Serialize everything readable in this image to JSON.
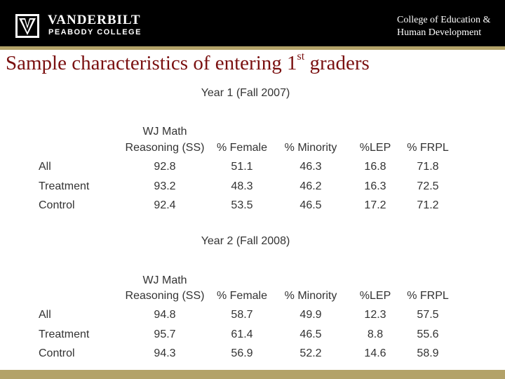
{
  "header": {
    "brand_name": "VANDERBILT",
    "brand_sub": "PEABODY COLLEGE",
    "college_line1": "College of Education &",
    "college_line2": "Human Development"
  },
  "slide": {
    "title_main": "Sample characteristics of entering 1",
    "title_sup": "st",
    "title_end": " graders"
  },
  "tables": [
    {
      "title": "Year 1 (Fall 2007)",
      "headers": [
        {
          "line1": "WJ Math",
          "line2": "Reasoning (SS)"
        },
        {
          "line1": "",
          "line2": "% Female"
        },
        {
          "line1": "",
          "line2": "% Minority"
        },
        {
          "line1": "",
          "line2": "%LEP"
        },
        {
          "line1": "",
          "line2": "% FRPL"
        }
      ],
      "rows": [
        {
          "label": "All",
          "values": [
            "92.8",
            "51.1",
            "46.3",
            "16.8",
            "71.8"
          ]
        },
        {
          "label": "Treatment",
          "values": [
            "93.2",
            "48.3",
            "46.2",
            "16.3",
            "72.5"
          ]
        },
        {
          "label": "Control",
          "values": [
            "92.4",
            "53.5",
            "46.5",
            "17.2",
            "71.2"
          ]
        }
      ]
    },
    {
      "title": "Year 2 (Fall 2008)",
      "headers": [
        {
          "line1": "WJ Math",
          "line2": "Reasoning (SS)"
        },
        {
          "line1": "",
          "line2": "% Female"
        },
        {
          "line1": "",
          "line2": "% Minority"
        },
        {
          "line1": "",
          "line2": "%LEP"
        },
        {
          "line1": "",
          "line2": "% FRPL"
        }
      ],
      "rows": [
        {
          "label": "All",
          "values": [
            "94.8",
            "58.7",
            "49.9",
            "12.3",
            "57.5"
          ]
        },
        {
          "label": "Treatment",
          "values": [
            "95.7",
            "61.4",
            "46.5",
            "8.8",
            "55.6"
          ]
        },
        {
          "label": "Control",
          "values": [
            "94.3",
            "56.9",
            "52.2",
            "14.6",
            "58.9"
          ]
        }
      ]
    }
  ]
}
